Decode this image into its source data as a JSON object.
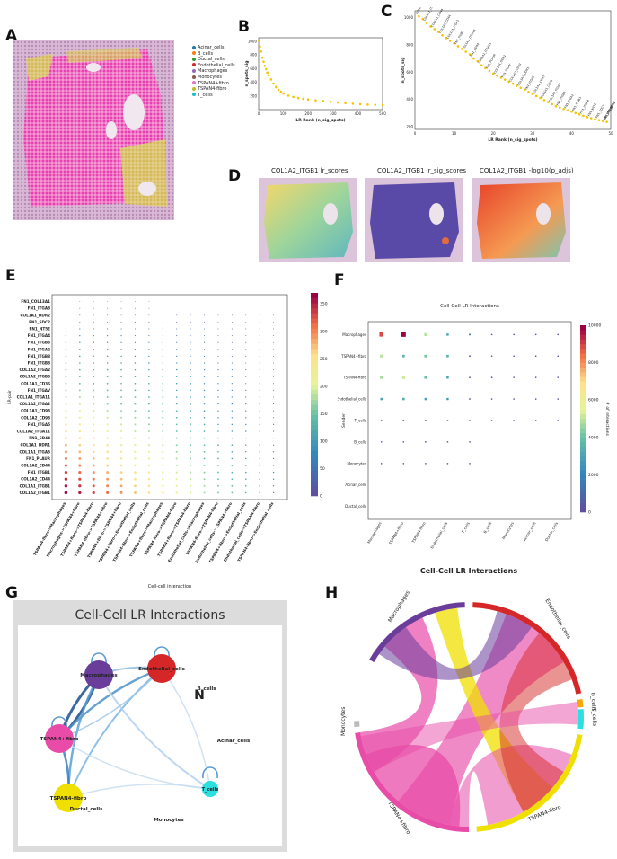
{
  "panels": {
    "A": "A",
    "B": "B",
    "C": "C",
    "D": "D",
    "E": "E",
    "F": "F",
    "G": "G",
    "H": "H"
  },
  "legendA": [
    {
      "label": "Acinar_cells",
      "color": "#1f77b4"
    },
    {
      "label": "B_cells",
      "color": "#ff7f0e"
    },
    {
      "label": "Ductal_cells",
      "color": "#2ca02c"
    },
    {
      "label": "Endothelial_cells",
      "color": "#d62728"
    },
    {
      "label": "Macrophages",
      "color": "#9467bd"
    },
    {
      "label": "Monocytes",
      "color": "#8c564b"
    },
    {
      "label": "TSPAN4+fibro",
      "color": "#e377c2"
    },
    {
      "label": "TSPAN4-fibro",
      "color": "#bcbd22"
    },
    {
      "label": "T_cells",
      "color": "#17becf"
    }
  ],
  "chart_data": [
    {
      "id": "B",
      "type": "scatter",
      "title": "",
      "xlabel": "LR Rank (n_sig_spots)",
      "ylabel": "n_spots_sig",
      "xlim": [
        0,
        500
      ],
      "ylim": [
        0,
        1050
      ],
      "xticks": [
        0,
        100,
        200,
        300,
        400,
        500
      ],
      "yticks": [
        200,
        400,
        600,
        800,
        1000
      ],
      "points": [
        [
          1,
          1010
        ],
        [
          5,
          920
        ],
        [
          10,
          850
        ],
        [
          15,
          760
        ],
        [
          20,
          700
        ],
        [
          25,
          640
        ],
        [
          30,
          590
        ],
        [
          35,
          540
        ],
        [
          40,
          500
        ],
        [
          50,
          440
        ],
        [
          60,
          380
        ],
        [
          70,
          330
        ],
        [
          80,
          290
        ],
        [
          90,
          260
        ],
        [
          100,
          235
        ],
        [
          120,
          205
        ],
        [
          140,
          185
        ],
        [
          160,
          170
        ],
        [
          180,
          158
        ],
        [
          200,
          148
        ],
        [
          230,
          135
        ],
        [
          260,
          125
        ],
        [
          290,
          115
        ],
        [
          320,
          105
        ],
        [
          350,
          95
        ],
        [
          380,
          87
        ],
        [
          410,
          80
        ],
        [
          440,
          74
        ],
        [
          470,
          70
        ],
        [
          500,
          66
        ]
      ]
    },
    {
      "id": "C",
      "type": "scatter",
      "xlabel": "LR Rank (n_sig_spots)",
      "ylabel": "n_spots_sig",
      "xlim": [
        0,
        50
      ],
      "ylim": [
        180,
        1050
      ],
      "xticks": [
        0,
        10,
        20,
        30,
        40,
        50
      ],
      "yticks": [
        200,
        400,
        600,
        800,
        1000
      ],
      "points": [
        [
          1,
          1010
        ],
        [
          2,
          990
        ],
        [
          3,
          960
        ],
        [
          4,
          935
        ],
        [
          5,
          915
        ],
        [
          6,
          895
        ],
        [
          7,
          870
        ],
        [
          8,
          850
        ],
        [
          9,
          830
        ],
        [
          10,
          810
        ],
        [
          11,
          790
        ],
        [
          12,
          770
        ],
        [
          13,
          750
        ],
        [
          14,
          730
        ],
        [
          15,
          700
        ],
        [
          16,
          680
        ],
        [
          17,
          650
        ],
        [
          18,
          630
        ],
        [
          19,
          610
        ],
        [
          20,
          590
        ],
        [
          21,
          575
        ],
        [
          22,
          560
        ],
        [
          23,
          545
        ],
        [
          24,
          530
        ],
        [
          25,
          515
        ],
        [
          26,
          500
        ],
        [
          27,
          485
        ],
        [
          28,
          470
        ],
        [
          29,
          455
        ],
        [
          30,
          440
        ],
        [
          31,
          425
        ],
        [
          32,
          410
        ],
        [
          33,
          395
        ],
        [
          34,
          380
        ],
        [
          35,
          365
        ],
        [
          36,
          350
        ],
        [
          37,
          340
        ],
        [
          38,
          330
        ],
        [
          39,
          320
        ],
        [
          40,
          310
        ],
        [
          41,
          300
        ],
        [
          42,
          290
        ],
        [
          43,
          280
        ],
        [
          44,
          270
        ],
        [
          45,
          262
        ],
        [
          46,
          255
        ],
        [
          47,
          248
        ],
        [
          48,
          241
        ],
        [
          49,
          235
        ]
      ],
      "labels": [
        "COL1A2_ITGB1",
        "COL1A1_ITGB1",
        "COL1A1_CD44",
        "COL1A2_CD44",
        "COL1A1_ITGA5",
        "FN1_ITGB1",
        "COL1A1_ITGA11",
        "FN1_CD44",
        "COL1A2_ITGA11",
        "FN1_PLAUR",
        "COL1A1_DDR1",
        "FN1_ITGAV",
        "COL1A2_CD93",
        "COL3A1_DDR1",
        "FN1_ITGA5",
        "COL1A1_CD93",
        "COL1A1_CD36",
        "COL1A2_ITGA2",
        "FN1_ITGB8",
        "FN1_ITGA2",
        "FN1_ITGB3",
        "FN1_ITGA4",
        "FN1_NT5E",
        "FN1_SDC2",
        "COL1A1_DDR2",
        "FN1_ITGA8",
        "FN1_COL13A1"
      ]
    },
    {
      "id": "E",
      "type": "scatter",
      "title": "",
      "xlabel": "Cell-cell interaction",
      "ylabel": "LR-pair",
      "colorbar": {
        "label": "# of interactions",
        "ticks": [
          0,
          50,
          100,
          150,
          200,
          250,
          300,
          350
        ]
      },
      "y_categories": [
        "FN1_COL13A1",
        "FN1_ITGA8",
        "COL1A1_DDR2",
        "FN1_SDC2",
        "FN1_NT5E",
        "FN1_ITGA4",
        "FN1_ITGB3",
        "FN1_ITGA2",
        "FN1_ITGB8",
        "FN1_ITGB8",
        "COL1A2_ITGA2",
        "COL1A2_ITGB3",
        "COL1A1_CD36",
        "FN1_ITGAV",
        "COL1A1_ITGA11",
        "COL1A2_ITGA2",
        "COL1A1_CD93",
        "COL1A2_CD93",
        "FN1_ITGA5",
        "COL1A2_ITGA11",
        "FN1_CD44",
        "COL1A1_DDR1",
        "COL1A1_ITGA5",
        "FN1_PLAUR",
        "COL1A2_CD44",
        "FN1_ITGB1",
        "COL1A2_CD44",
        "COL1A1_ITGB1",
        "COL1A2_ITGB1"
      ],
      "x_categories": [
        "TSPAN4-fibro->Macrophages",
        "Macrophages->TSPAN4+fibro",
        "TSPAN4+fibro->TSPAN4-fibro",
        "TSPAN4-fibro->TSPAN4+fibro",
        "TSPAN4+fibro->TSPAN4+fibro",
        "TSPAN4+fibro->Endothelial_cells",
        "TSPAN4-fibro->Endothelial_cells",
        "TSPAN4+fibro->Macrophages",
        "TSPAN4-fibro->TSPAN4-fibro",
        "TSPAN4+fibro->TSPAN4-fibro",
        "Endothelial_cells->Macrophages",
        "TSPAN4-fibro->TSPAN4-fibro",
        "Endothelial_cells->TSPAN4+fibro",
        "TSPAN4+fibro->Endothelial_cells",
        "Endothelial_cells->TSPAN4-fibro",
        "TSPAN4-fibro->Endothelial_cells"
      ]
    },
    {
      "id": "F",
      "type": "scatter",
      "title": "Cell-Cell LR Interactions",
      "ylabel": "Sender",
      "xlabel": "",
      "colorbar": {
        "label": "# of interactions",
        "ticks": [
          0,
          2000,
          4000,
          6000,
          8000,
          10000
        ]
      },
      "senders": [
        "Macrophages",
        "TSPAN4+fibro",
        "TSPAN4-fibro",
        "Endothelial_cells",
        "T_cells",
        "B_cells",
        "Monocytes",
        "Acinar_cells",
        "Ductal_cells"
      ],
      "receivers": [
        "Macrophages",
        "TSPAN4+fibro",
        "TSPAN4-fibro",
        "Endothelial_cells",
        "T_cells",
        "B_cells",
        "Monocytes",
        "Acinar_cells",
        "Ductal_cells"
      ],
      "matrix": [
        [
          9000,
          10000,
          5000,
          3000,
          800,
          100,
          100,
          50,
          50
        ],
        [
          5000,
          3500,
          4200,
          3500,
          600,
          80,
          60,
          40,
          40
        ],
        [
          4800,
          5200,
          4000,
          3000,
          500,
          80,
          60,
          40,
          40
        ],
        [
          3000,
          3200,
          3000,
          2500,
          400,
          60,
          50,
          30,
          30
        ],
        [
          300,
          500,
          400,
          350,
          100,
          20,
          20,
          10,
          10
        ],
        [
          10,
          20,
          10,
          10,
          5,
          0,
          0,
          0,
          0
        ],
        [
          20,
          30,
          30,
          20,
          10,
          0,
          0,
          0,
          0
        ],
        [
          0,
          0,
          0,
          0,
          0,
          0,
          0,
          0,
          0
        ],
        [
          0,
          0,
          0,
          0,
          0,
          0,
          0,
          0,
          0
        ]
      ]
    },
    {
      "id": "H",
      "type": "chord",
      "title": "Cell-Cell LR Interactions",
      "labels": [
        "Macrophages",
        "Endothelial_cells",
        "B_cells",
        "T_cells",
        "TSPAN4-fibro",
        "TSPAN4+fibro",
        "Monocytes"
      ]
    }
  ],
  "panelD": {
    "titles": [
      "COL1A2_ITGB1 lr_scores",
      "COL1A2_ITGB1 lr_sig_scores",
      "COL1A2_ITGB1 -log10(p_adjs)"
    ]
  },
  "panelG": {
    "title": "Cell-Cell LR Interactions",
    "nodes": [
      {
        "label": "Macrophages",
        "color": "#6a3d9a"
      },
      {
        "label": "Endothelial_cells",
        "color": "#d62728"
      },
      {
        "label": "TSPAN4+fibro",
        "color": "#e84ca8"
      },
      {
        "label": "TSPAN4-fibro",
        "color": "#f0e000"
      },
      {
        "label": "B_cells",
        "color": "#ffffff"
      },
      {
        "label": "Acinar_cells",
        "color": "#ffffff"
      },
      {
        "label": "T_cells",
        "color": "#2de0e0"
      },
      {
        "label": "Ductal_cells",
        "color": "#ffffff"
      },
      {
        "label": "Monocytes",
        "color": "#ffffff"
      }
    ],
    "extra_label": "N"
  }
}
